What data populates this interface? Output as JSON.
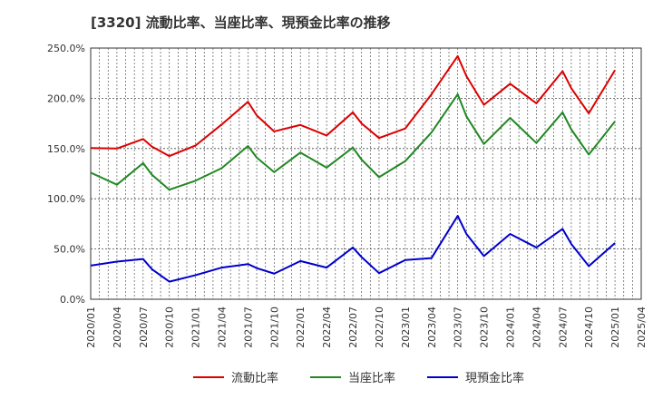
{
  "chart_data": {
    "type": "line",
    "title": "[3320]  流動比率、当座比率、現預金比率の推移",
    "ylim": [
      0,
      250
    ],
    "y_ticks": [
      0,
      50,
      100,
      150,
      200,
      250
    ],
    "y_tick_labels": [
      "0.0%",
      "50.0%",
      "100.0%",
      "150.0%",
      "200.0%",
      "250.0%"
    ],
    "x_tick_labels": [
      "2020/01",
      "2020/04",
      "2020/07",
      "2020/10",
      "2021/01",
      "2021/04",
      "2021/07",
      "2021/10",
      "2022/01",
      "2022/04",
      "2022/07",
      "2022/10",
      "2023/01",
      "2023/04",
      "2023/07",
      "2023/10",
      "2024/01",
      "2024/04",
      "2024/07",
      "2024/10",
      "2025/01",
      "2025/04"
    ],
    "x_start": "2020/01",
    "x_end": "2025/04",
    "legend_position": "bottom",
    "series": [
      {
        "name": "流動比率",
        "color": "#dd0000",
        "points": [
          [
            "2020/01",
            150.5
          ],
          [
            "2020/04",
            150.0
          ],
          [
            "2020/07",
            159.5
          ],
          [
            "2020/08",
            152.0
          ],
          [
            "2020/10",
            142.5
          ],
          [
            "2021/01",
            153.0
          ],
          [
            "2021/04",
            174.0
          ],
          [
            "2021/07",
            196.5
          ],
          [
            "2021/08",
            183.0
          ],
          [
            "2021/10",
            167.0
          ],
          [
            "2022/01",
            173.5
          ],
          [
            "2022/04",
            163.0
          ],
          [
            "2022/07",
            186.0
          ],
          [
            "2022/08",
            175.0
          ],
          [
            "2022/10",
            160.5
          ],
          [
            "2023/01",
            170.0
          ],
          [
            "2023/04",
            204.0
          ],
          [
            "2023/07",
            242.0
          ],
          [
            "2023/08",
            222.0
          ],
          [
            "2023/10",
            193.5
          ],
          [
            "2024/01",
            214.5
          ],
          [
            "2024/04",
            195.0
          ],
          [
            "2024/07",
            227.0
          ],
          [
            "2024/08",
            210.0
          ],
          [
            "2024/10",
            185.0
          ],
          [
            "2025/01",
            228.0
          ]
        ]
      },
      {
        "name": "当座比率",
        "color": "#228822",
        "points": [
          [
            "2020/01",
            126.0
          ],
          [
            "2020/04",
            114.0
          ],
          [
            "2020/07",
            135.5
          ],
          [
            "2020/08",
            124.0
          ],
          [
            "2020/10",
            109.0
          ],
          [
            "2021/01",
            118.0
          ],
          [
            "2021/04",
            130.5
          ],
          [
            "2021/07",
            152.5
          ],
          [
            "2021/08",
            141.0
          ],
          [
            "2021/10",
            126.5
          ],
          [
            "2022/01",
            146.0
          ],
          [
            "2022/04",
            131.0
          ],
          [
            "2022/07",
            151.0
          ],
          [
            "2022/08",
            139.0
          ],
          [
            "2022/10",
            121.5
          ],
          [
            "2023/01",
            137.5
          ],
          [
            "2023/04",
            166.0
          ],
          [
            "2023/07",
            204.0
          ],
          [
            "2023/08",
            182.0
          ],
          [
            "2023/10",
            154.5
          ],
          [
            "2024/01",
            180.5
          ],
          [
            "2024/04",
            155.5
          ],
          [
            "2024/07",
            186.0
          ],
          [
            "2024/08",
            169.0
          ],
          [
            "2024/10",
            144.0
          ],
          [
            "2025/01",
            177.0
          ]
        ]
      },
      {
        "name": "現預金比率",
        "color": "#0000cc",
        "points": [
          [
            "2020/01",
            33.5
          ],
          [
            "2020/04",
            37.5
          ],
          [
            "2020/07",
            40.0
          ],
          [
            "2020/08",
            30.0
          ],
          [
            "2020/10",
            17.5
          ],
          [
            "2021/01",
            24.0
          ],
          [
            "2021/04",
            31.5
          ],
          [
            "2021/07",
            35.0
          ],
          [
            "2021/08",
            31.0
          ],
          [
            "2021/10",
            25.5
          ],
          [
            "2022/01",
            38.0
          ],
          [
            "2022/04",
            31.5
          ],
          [
            "2022/07",
            51.5
          ],
          [
            "2022/08",
            42.0
          ],
          [
            "2022/10",
            26.0
          ],
          [
            "2023/01",
            39.0
          ],
          [
            "2023/04",
            41.0
          ],
          [
            "2023/07",
            83.0
          ],
          [
            "2023/08",
            65.0
          ],
          [
            "2023/10",
            43.0
          ],
          [
            "2024/01",
            65.0
          ],
          [
            "2024/04",
            51.5
          ],
          [
            "2024/07",
            70.0
          ],
          [
            "2024/08",
            55.0
          ],
          [
            "2024/10",
            33.0
          ],
          [
            "2025/01",
            56.0
          ]
        ]
      }
    ]
  }
}
